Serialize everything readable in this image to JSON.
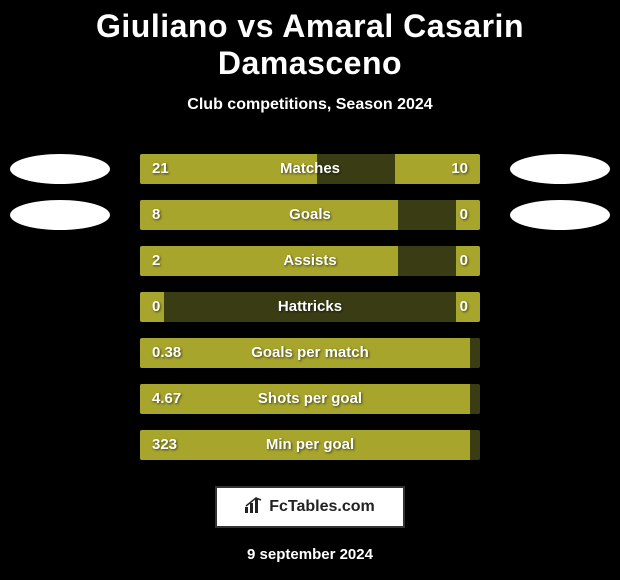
{
  "title": "Giuliano vs Amaral Casarin Damasceno",
  "subtitle": "Club competitions, Season 2024",
  "colors": {
    "background": "#000000",
    "bar_fill": "#a7a52c",
    "bar_track": "#3a3d14",
    "text": "#ffffff",
    "badge_bg": "#ffffff"
  },
  "stats": [
    {
      "label": "Matches",
      "left_val": "21",
      "right_val": "10",
      "left_pct": 52,
      "right_pct": 25,
      "show_badges": true
    },
    {
      "label": "Goals",
      "left_val": "8",
      "right_val": "0",
      "left_pct": 76,
      "right_pct": 7,
      "show_badges": true
    },
    {
      "label": "Assists",
      "left_val": "2",
      "right_val": "0",
      "left_pct": 76,
      "right_pct": 7,
      "show_badges": false
    },
    {
      "label": "Hattricks",
      "left_val": "0",
      "right_val": "0",
      "left_pct": 7,
      "right_pct": 7,
      "show_badges": false
    },
    {
      "label": "Goals per match",
      "left_val": "0.38",
      "right_val": "",
      "left_pct": 97,
      "right_pct": 0,
      "show_badges": false
    },
    {
      "label": "Shots per goal",
      "left_val": "4.67",
      "right_val": "",
      "left_pct": 97,
      "right_pct": 0,
      "show_badges": false
    },
    {
      "label": "Min per goal",
      "left_val": "323",
      "right_val": "",
      "left_pct": 97,
      "right_pct": 0,
      "show_badges": false
    }
  ],
  "footer": {
    "brand": "FcTables.com",
    "date": "9 september 2024"
  }
}
